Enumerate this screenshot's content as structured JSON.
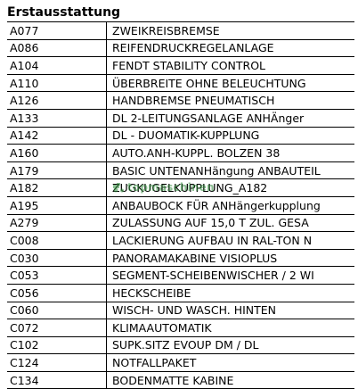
{
  "section": {
    "title": "Erstausstattung"
  },
  "table": {
    "rows": [
      {
        "code": "A077",
        "description": "ZWEIKREISBREMSE"
      },
      {
        "code": "A086",
        "description": "REIFENDRUCKREGELANLAGE"
      },
      {
        "code": "A104",
        "description": "FENDT STABILITY CONTROL"
      },
      {
        "code": "A110",
        "description": "ÜBERBREITE OHNE BELEUCHTUNG"
      },
      {
        "code": "A126",
        "description": "HANDBREMSE PNEUMATISCH"
      },
      {
        "code": "A133",
        "description": "DL 2-LEITUNGSANLAGE ANHÄnger"
      },
      {
        "code": "A142",
        "description": "DL - DUOMATIK-KUPPLUNG"
      },
      {
        "code": "A160",
        "description": "AUTO.ANH-KUPPL. BOLZEN 38"
      },
      {
        "code": "A179",
        "description": "BASIC UNTENANHängung ANBAUTEIL"
      },
      {
        "code": "A182",
        "description": "ZUGKUGELKUPPLUNG_A182"
      },
      {
        "code": "A195",
        "description": "ANBAUBOCK FÜR ANHängerkupplung"
      },
      {
        "code": "A279",
        "description": "ZULASSUNG AUF 15,0 T ZUL. GESA"
      },
      {
        "code": "C008",
        "description": "LACKIERUNG AUFBAU IN RAL-TON N"
      },
      {
        "code": "C030",
        "description": "PANORAMAKABINE VISIOPLUS"
      },
      {
        "code": "C053",
        "description": "SEGMENT-SCHEIBENWISCHER / 2 WI"
      },
      {
        "code": "C056",
        "description": "HECKSCHEIBE"
      },
      {
        "code": "C060",
        "description": "WISCH- UND WASCH. HINTEN"
      },
      {
        "code": "C072",
        "description": "KLIMAAUTOMATIK"
      },
      {
        "code": "C102",
        "description": "SUPK.SITZ EVOUP DM / DL"
      },
      {
        "code": "C124",
        "description": "NOTFALLPAKET"
      },
      {
        "code": "C134",
        "description": "BODENMATTE KABINE"
      }
    ]
  },
  "watermark": {
    "text": "topmaschinen",
    "icon": "tractor-logo-icon",
    "color": "#2e8b3a"
  }
}
